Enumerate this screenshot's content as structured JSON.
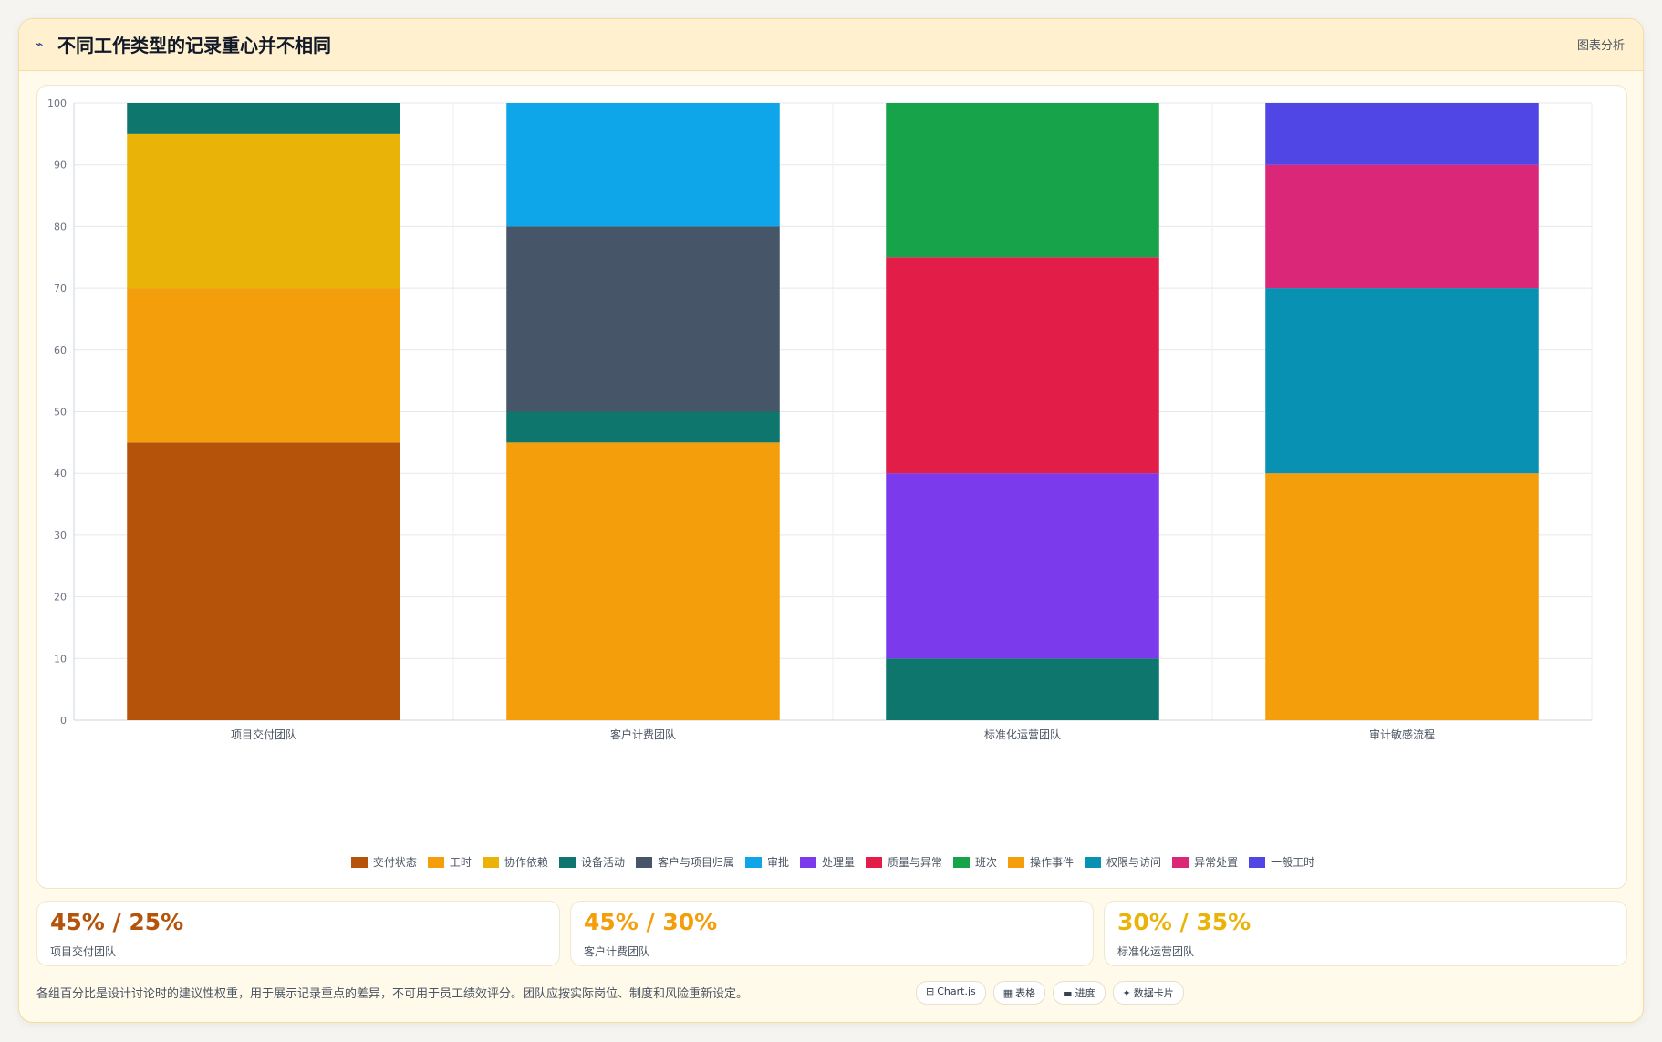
{
  "header": {
    "icon": "chart-line-icon",
    "title": "不同工作类型的记录重心并不相同",
    "action_label": "图表分析"
  },
  "colors": {
    "交付状态": "#b45309",
    "工时": "#f59e0b",
    "协作依赖": "#eab308",
    "设备活动": "#0f766e",
    "客户与项目归属": "#475569",
    "审批": "#0ea5e9",
    "处理量": "#7c3aed",
    "质量与异常": "#e11d48",
    "班次": "#16a34a",
    "操作事件": "#f59e0b",
    "权限与访问": "#0891b2",
    "异常处置": "#db2777",
    "一般工时": "#4f46e5"
  },
  "chart_data": {
    "type": "bar",
    "stacked": true,
    "categories": [
      "项目交付团队",
      "客户计费团队",
      "标准化运营团队",
      "审计敏感流程"
    ],
    "ylim": [
      0,
      100
    ],
    "yticks": [
      0,
      10,
      20,
      30,
      40,
      50,
      60,
      70,
      80,
      90,
      100
    ],
    "legend_position": "bottom",
    "grid": true,
    "series": [
      {
        "name": "交付状态",
        "values": [
          45,
          0,
          0,
          0
        ]
      },
      {
        "name": "工时",
        "values": [
          25,
          45,
          0,
          0
        ]
      },
      {
        "name": "协作依赖",
        "values": [
          25,
          0,
          0,
          0
        ]
      },
      {
        "name": "设备活动",
        "values": [
          5,
          5,
          10,
          0
        ]
      },
      {
        "name": "客户与项目归属",
        "values": [
          0,
          30,
          0,
          0
        ]
      },
      {
        "name": "审批",
        "values": [
          0,
          20,
          0,
          0
        ]
      },
      {
        "name": "处理量",
        "values": [
          0,
          0,
          30,
          0
        ]
      },
      {
        "name": "质量与异常",
        "values": [
          0,
          0,
          35,
          0
        ]
      },
      {
        "name": "班次",
        "values": [
          0,
          0,
          25,
          0
        ]
      },
      {
        "name": "操作事件",
        "values": [
          0,
          0,
          0,
          40
        ]
      },
      {
        "name": "权限与访问",
        "values": [
          0,
          0,
          0,
          30
        ]
      },
      {
        "name": "异常处置",
        "values": [
          0,
          0,
          0,
          20
        ]
      },
      {
        "name": "一般工时",
        "values": [
          0,
          0,
          0,
          10
        ]
      }
    ]
  },
  "stats": [
    {
      "value": "45% / 25%",
      "label": "项目交付团队",
      "color": "#b45309"
    },
    {
      "value": "45% / 30%",
      "label": "客户计费团队",
      "color": "#f59e0b"
    },
    {
      "value": "30% / 35%",
      "label": "标准化运营团队",
      "color": "#eab308"
    }
  ],
  "footnote": "各组百分比是设计讨论时的建议性权重，用于展示记录重点的差异，不可用于员工绩效评分。团队应按实际岗位、制度和风险重新设定。",
  "tags": [
    {
      "icon": "⊟",
      "label": "Chart.js"
    },
    {
      "icon": "▦",
      "label": "表格"
    },
    {
      "icon": "▬",
      "label": "进度"
    },
    {
      "icon": "✦",
      "label": "数据卡片"
    }
  ]
}
